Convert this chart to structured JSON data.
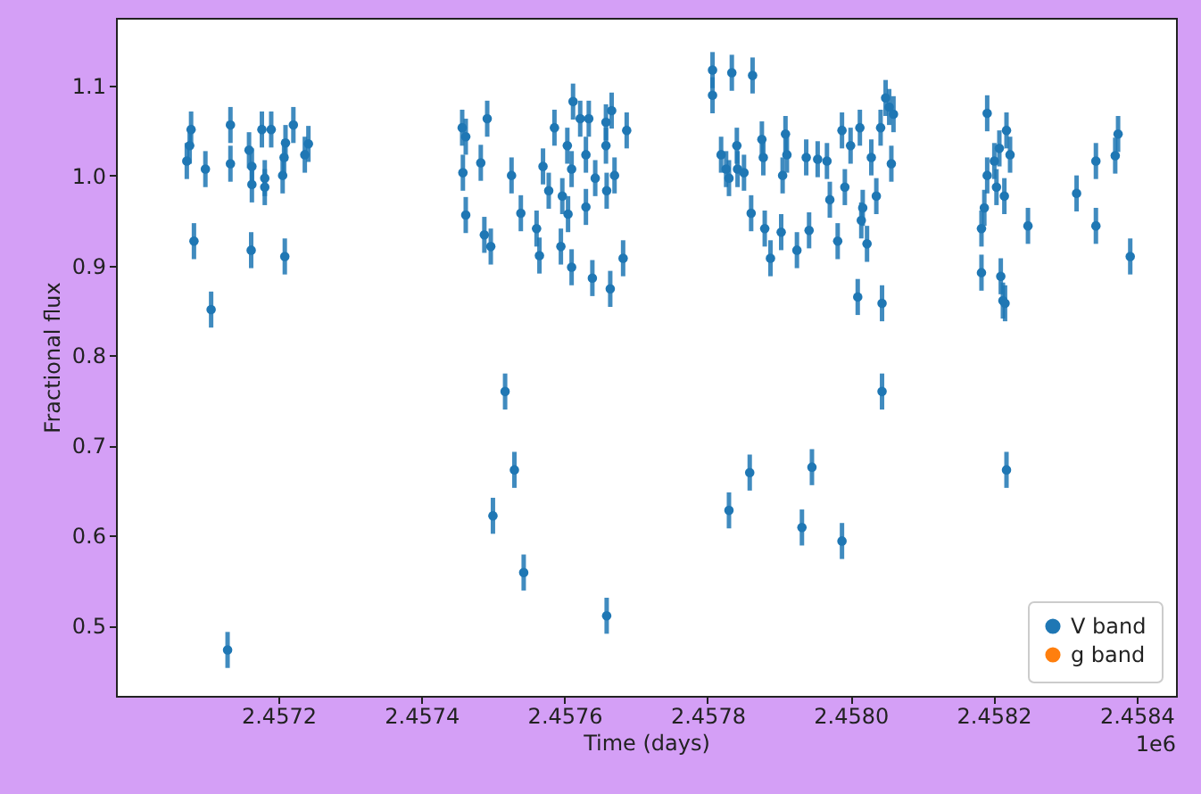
{
  "chart_data": {
    "type": "scatter",
    "xlabel": "Time (days)",
    "ylabel": "Fractional flux",
    "annotations": [
      "1e6"
    ],
    "xlim": [
      2.456973,
      2.458455
    ],
    "ylim": [
      0.422,
      1.175
    ],
    "xticks": [
      2.4572,
      2.4574,
      2.4576,
      2.4578,
      {
        "value": 2.458,
        "label": "2.4580"
      },
      2.4582,
      2.4584
    ],
    "yticks": [
      0.5,
      0.6,
      0.7,
      0.8,
      0.9,
      {
        "value": 1.0,
        "label": "1.0"
      },
      1.1
    ],
    "grid": false,
    "legend": "bottom right",
    "marker": "circle",
    "series": [
      {
        "name": "V band",
        "color": "#1f77b4",
        "x": [
          2.457072,
          2.457078,
          2.457076,
          2.457082,
          2.457098,
          2.457106,
          2.457133,
          2.457133,
          2.457129,
          2.457159,
          2.457163,
          2.457163,
          2.457162,
          2.457177,
          2.457181,
          2.457181,
          2.45719,
          2.457206,
          2.457208,
          2.45721,
          2.457209,
          2.457221,
          2.457237,
          2.457242,
          2.457457,
          2.457462,
          2.457458,
          2.457462,
          2.457483,
          2.457492,
          2.457488,
          2.457497,
          2.4575,
          2.457517,
          2.457526,
          2.45753,
          2.457539,
          2.457543,
          2.457561,
          2.457565,
          2.45757,
          2.457578,
          2.457586,
          2.457595,
          2.457597,
          2.457604,
          2.457605,
          2.45761,
          2.45761,
          2.457612,
          2.457622,
          2.45763,
          2.45763,
          2.457634,
          2.457639,
          2.457643,
          2.457658,
          2.457658,
          2.457659,
          2.457659,
          2.457664,
          2.457666,
          2.45767,
          2.457682,
          2.457687,
          2.457807,
          2.457807,
          2.457834,
          2.457863,
          2.457819,
          2.457826,
          2.45783,
          2.457841,
          2.457842,
          2.457851,
          2.45783,
          2.457859,
          2.457861,
          2.457876,
          2.457878,
          2.45788,
          2.457888,
          2.457903,
          2.457905,
          2.457909,
          2.457911,
          2.457925,
          2.457932,
          2.457938,
          2.457942,
          2.457946,
          2.457954,
          2.457967,
          2.457971,
          2.457982,
          2.457988,
          2.457988,
          2.457992,
          2.458,
          2.45801,
          2.458013,
          2.458015,
          2.458017,
          2.458023,
          2.458029,
          2.458036,
          2.458042,
          2.458044,
          2.458044,
          2.458049,
          2.458054,
          2.458057,
          2.45806,
          2.458191,
          2.458183,
          2.458183,
          2.458187,
          2.458191,
          2.458201,
          2.458204,
          2.45821,
          2.458213,
          2.458216,
          2.458208,
          2.458215,
          2.458218,
          2.458223,
          2.458218,
          2.458248,
          2.458316,
          2.458343,
          2.458343,
          2.45837,
          2.458374,
          2.458391
        ],
        "values": [
          1.016,
          1.051,
          1.033,
          0.927,
          1.007,
          0.851,
          1.056,
          1.013,
          0.473,
          1.028,
          1.01,
          0.99,
          0.917,
          1.051,
          0.997,
          0.987,
          1.051,
          1.0,
          1.02,
          1.036,
          0.91,
          1.056,
          1.023,
          1.035,
          1.053,
          1.043,
          1.003,
          0.956,
          1.014,
          1.063,
          0.934,
          0.921,
          0.622,
          0.76,
          1.0,
          0.673,
          0.958,
          0.559,
          0.941,
          0.911,
          1.01,
          0.983,
          1.053,
          0.921,
          0.977,
          1.033,
          0.957,
          1.007,
          0.898,
          1.082,
          1.063,
          1.023,
          0.965,
          1.063,
          0.886,
          0.997,
          1.059,
          1.033,
          0.983,
          0.511,
          0.874,
          1.072,
          1.0,
          0.908,
          1.05,
          1.117,
          1.089,
          1.114,
          1.111,
          1.023,
          1.007,
          0.997,
          1.033,
          1.007,
          1.003,
          0.628,
          0.67,
          0.958,
          1.04,
          1.02,
          0.941,
          0.908,
          0.937,
          1.0,
          1.046,
          1.023,
          0.917,
          0.609,
          1.02,
          0.939,
          0.676,
          1.018,
          1.016,
          0.973,
          0.927,
          0.594,
          1.05,
          0.987,
          1.033,
          0.865,
          1.053,
          0.95,
          0.964,
          0.924,
          1.02,
          0.977,
          1.053,
          0.858,
          0.76,
          1.086,
          1.076,
          1.013,
          1.068,
          1.069,
          0.941,
          0.892,
          0.964,
          1.0,
          1.016,
          0.987,
          0.888,
          0.861,
          0.858,
          1.03,
          0.977,
          1.05,
          1.023,
          0.673,
          0.944,
          0.98,
          1.016,
          0.944,
          1.022,
          1.046,
          0.91
        ],
        "errors": [
          0.02,
          0.02,
          0.02,
          0.02,
          0.02,
          0.02,
          0.02,
          0.02,
          0.02,
          0.02,
          0.02,
          0.02,
          0.02,
          0.02,
          0.02,
          0.02,
          0.02,
          0.02,
          0.02,
          0.02,
          0.02,
          0.02,
          0.02,
          0.02,
          0.02,
          0.02,
          0.02,
          0.02,
          0.02,
          0.02,
          0.02,
          0.02,
          0.02,
          0.02,
          0.02,
          0.02,
          0.02,
          0.02,
          0.02,
          0.02,
          0.02,
          0.02,
          0.02,
          0.02,
          0.02,
          0.02,
          0.02,
          0.02,
          0.02,
          0.02,
          0.02,
          0.02,
          0.02,
          0.02,
          0.02,
          0.02,
          0.02,
          0.02,
          0.02,
          0.02,
          0.02,
          0.02,
          0.02,
          0.02,
          0.02,
          0.02,
          0.02,
          0.02,
          0.02,
          0.02,
          0.02,
          0.02,
          0.02,
          0.02,
          0.02,
          0.02,
          0.02,
          0.02,
          0.02,
          0.02,
          0.02,
          0.02,
          0.02,
          0.02,
          0.02,
          0.02,
          0.02,
          0.02,
          0.02,
          0.02,
          0.02,
          0.02,
          0.02,
          0.02,
          0.02,
          0.02,
          0.02,
          0.02,
          0.02,
          0.02,
          0.02,
          0.02,
          0.02,
          0.02,
          0.02,
          0.02,
          0.02,
          0.02,
          0.02,
          0.02,
          0.02,
          0.02,
          0.02,
          0.02,
          0.02,
          0.02,
          0.02,
          0.02,
          0.02,
          0.02,
          0.02,
          0.02,
          0.02,
          0.02,
          0.02,
          0.02,
          0.02,
          0.02,
          0.02,
          0.02,
          0.02,
          0.02,
          0.02,
          0.02,
          0.02
        ]
      },
      {
        "name": "g band",
        "color": "#ff7f0e"
      }
    ]
  }
}
